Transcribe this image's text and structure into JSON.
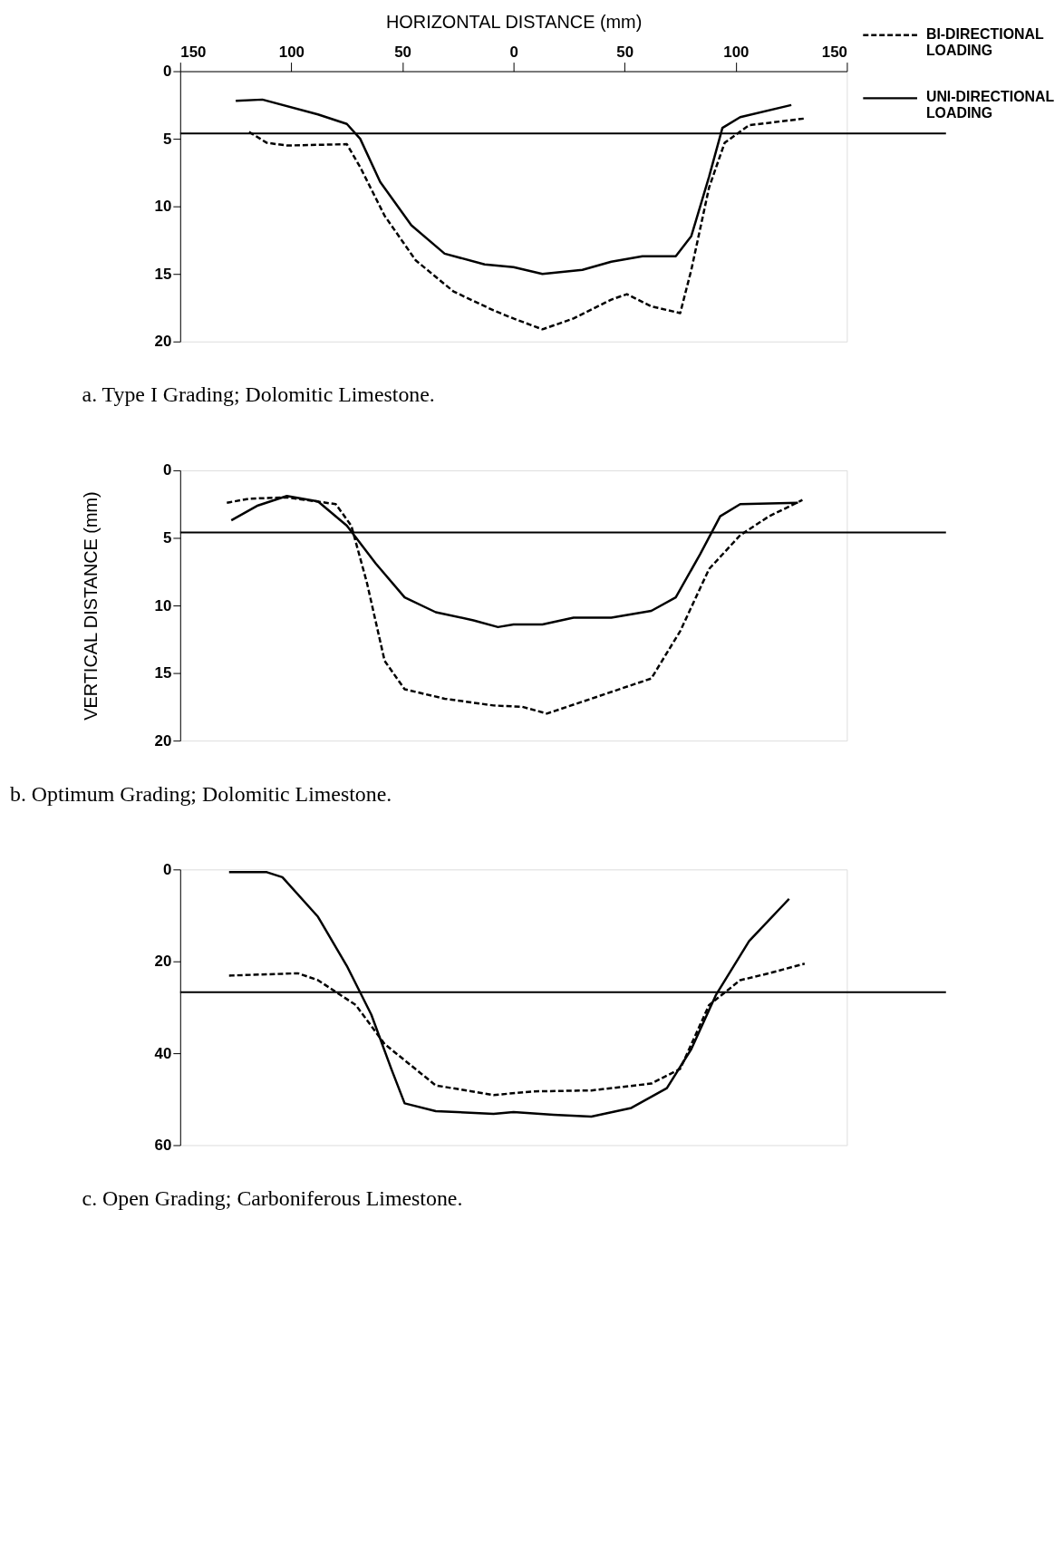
{
  "chart_data": [
    {
      "type": "line",
      "xlabel": "HORIZONTAL DISTANCE (mm)",
      "xlim": [
        -150,
        150
      ],
      "xticks": [
        {
          "value": -150,
          "label": "150"
        },
        {
          "value": -100,
          "label": "100"
        },
        {
          "value": -50,
          "label": "50"
        },
        0,
        50,
        100,
        150
      ],
      "ylim": [
        20,
        0
      ],
      "yticks": [
        0,
        5,
        10,
        15,
        20
      ],
      "legend": "top right",
      "grid": false,
      "annotations": [
        "a.      Type I Grading; Dolomitic Limestone."
      ],
      "ref_lines": [
        {
          "axis": "y",
          "value": 4.6
        }
      ],
      "series": [
        {
          "name": "BI-DIRECTIONAL LOADING",
          "color": "#000000",
          "line_style": "dashed",
          "x": [
            -119,
            -111,
            -102,
            -75,
            -69,
            -58,
            -44,
            -27,
            -9,
            0,
            13,
            27,
            44,
            51,
            62,
            75,
            80,
            88,
            95,
            106,
            131
          ],
          "values": [
            4.5,
            5.3,
            5.5,
            5.4,
            7.1,
            10.7,
            14.0,
            16.3,
            17.7,
            18.3,
            19.1,
            18.3,
            16.9,
            16.5,
            17.4,
            17.9,
            14.7,
            8.6,
            5.3,
            4.0,
            3.5
          ]
        },
        {
          "name": "UNI-DIRECTIONAL LOADING",
          "color": "#000000",
          "line_style": "solid",
          "x": [
            -125,
            -113,
            -88,
            -75,
            -69,
            -60,
            -46,
            -31,
            -13,
            0,
            13,
            31,
            44,
            58,
            73,
            80,
            88,
            94,
            102,
            125
          ],
          "values": [
            2.2,
            2.1,
            3.2,
            3.9,
            5.0,
            8.2,
            11.4,
            13.5,
            14.3,
            14.5,
            15.0,
            14.7,
            14.1,
            13.7,
            13.7,
            12.2,
            7.8,
            4.2,
            3.4,
            2.5
          ]
        }
      ]
    },
    {
      "type": "line",
      "ylabel": "VERTICAL DISTANCE (mm)",
      "xlim": [
        -150,
        150
      ],
      "ylim": [
        20,
        0
      ],
      "yticks": [
        0,
        5,
        10,
        15,
        20
      ],
      "tick_labels": "y",
      "grid": false,
      "annotations": [
        "b.      Optimum Grading; Dolomitic Limestone."
      ],
      "ref_lines": [
        {
          "axis": "y",
          "value": 4.6
        }
      ],
      "series": [
        {
          "color": "#000000",
          "line_style": "dashed",
          "x": [
            -129,
            -119,
            -102,
            -80,
            -73,
            -66,
            -58,
            -49,
            -31,
            -9,
            4,
            15,
            35,
            62,
            75,
            88,
            102,
            115,
            130
          ],
          "values": [
            2.4,
            2.1,
            2.0,
            2.5,
            4.1,
            8.3,
            14.1,
            16.2,
            16.9,
            17.4,
            17.5,
            18.0,
            16.9,
            15.4,
            11.9,
            7.3,
            4.8,
            3.4,
            2.2
          ]
        },
        {
          "color": "#000000",
          "line_style": "solid",
          "x": [
            -127,
            -115,
            -102,
            -88,
            -75,
            -62,
            -49,
            -35,
            -18,
            -7,
            0,
            13,
            27,
            44,
            62,
            73,
            84,
            93,
            102,
            128
          ],
          "values": [
            3.7,
            2.6,
            1.9,
            2.3,
            4.1,
            6.9,
            9.4,
            10.5,
            11.1,
            11.6,
            11.4,
            11.4,
            10.9,
            10.9,
            10.4,
            9.4,
            6.2,
            3.4,
            2.5,
            2.4
          ]
        }
      ]
    },
    {
      "type": "line",
      "xlim": [
        -150,
        150
      ],
      "ylim": [
        60,
        0
      ],
      "yticks": [
        0,
        20,
        40,
        60
      ],
      "tick_labels": "y",
      "grid": false,
      "annotations": [
        "c.      Open Grading; Carboniferous Limestone."
      ],
      "ref_lines": [
        {
          "axis": "y",
          "value": 26.7
        }
      ],
      "series": [
        {
          "color": "#000000",
          "line_style": "dashed",
          "x": [
            -128,
            -97,
            -88,
            -71,
            -58,
            -35,
            -9,
            9,
            35,
            62,
            75,
            88,
            102,
            115,
            131
          ],
          "values": [
            23.1,
            22.6,
            24.1,
            29.5,
            38,
            47,
            49.1,
            48.3,
            48.1,
            46.6,
            43.4,
            29.5,
            24.1,
            22.6,
            20.5
          ]
        },
        {
          "color": "#000000",
          "line_style": "solid",
          "x": [
            -128,
            -111,
            -104,
            -88,
            -75,
            -64,
            -55,
            -49,
            -35,
            -9,
            0,
            18,
            35,
            53,
            69,
            80,
            91,
            106,
            124
          ],
          "values": [
            0.6,
            0.6,
            1.7,
            10.3,
            21,
            31.6,
            43.4,
            50.9,
            52.6,
            53.2,
            52.8,
            53.4,
            53.8,
            51.9,
            47.6,
            39.1,
            27.4,
            15.6,
            6.4
          ]
        }
      ]
    }
  ]
}
